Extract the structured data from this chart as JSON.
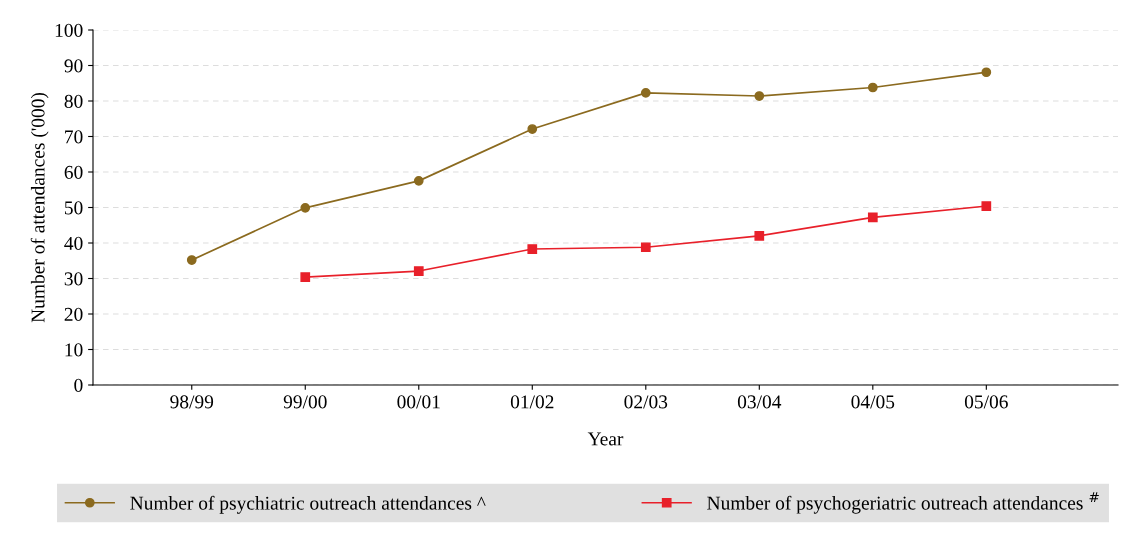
{
  "chart_data": {
    "type": "line",
    "xlabel": "Year",
    "ylabel": "Number of attendances ('000)",
    "categories": [
      "98/99",
      "99/00",
      "00/01",
      "01/02",
      "02/03",
      "03/04",
      "04/05",
      "05/06"
    ],
    "series": [
      {
        "name": "Number of psychiatric outreach attendances ^",
        "color": "#8b6a1f",
        "marker": "circle",
        "values": [
          35.2,
          49.9,
          57.5,
          72.1,
          82.3,
          81.4,
          83.8,
          88.1
        ]
      },
      {
        "name": "Number of psychogeriatric outreach attendances $^{#}$",
        "color": "#e8202a",
        "marker": "square",
        "values": [
          null,
          30.4,
          32.1,
          38.3,
          38.8,
          42.0,
          47.2,
          50.4
        ]
      }
    ],
    "ylim": [
      0,
      100
    ],
    "yticks": [
      0,
      10,
      20,
      30,
      40,
      50,
      60,
      70,
      80,
      90,
      100
    ],
    "grid": "y",
    "legend": "bottom",
    "line_style": "solid"
  }
}
